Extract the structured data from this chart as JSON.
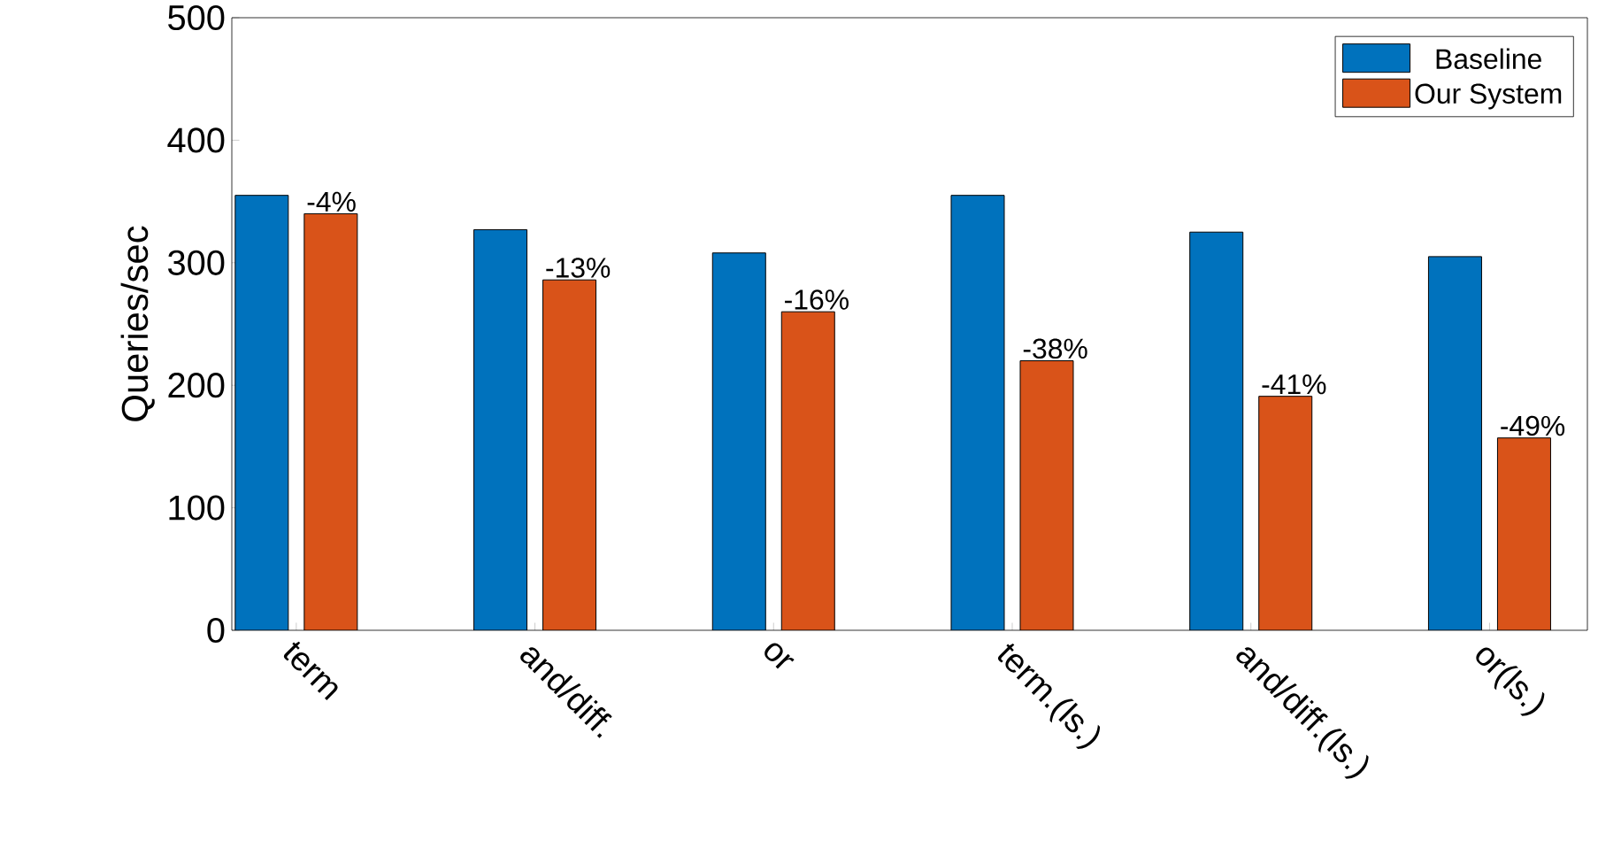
{
  "chart_data": {
    "type": "bar",
    "ylabel": "Queries/sec",
    "categories": [
      "term",
      "and/diff.",
      "or",
      "term.(ls.)",
      "and/diff.(ls.)",
      "or(ls.)"
    ],
    "series": [
      {
        "name": "Baseline",
        "color": "#0072bd",
        "values": [
          355,
          327,
          308,
          355,
          325,
          305
        ]
      },
      {
        "name": "Our System",
        "color": "#d95319",
        "values": [
          340,
          286,
          260,
          220,
          191,
          157
        ]
      }
    ],
    "annotations": [
      {
        "text": "-4%",
        "x": "term",
        "y": 340
      },
      {
        "text": "-13%",
        "x": "and/diff.",
        "y": 286
      },
      {
        "text": "-16%",
        "x": "or",
        "y": 260
      },
      {
        "text": "-38%",
        "x": "term.(ls.)",
        "y": 220
      },
      {
        "text": "-41%",
        "x": "and/diff.(ls.)",
        "y": 191
      },
      {
        "text": "-49%",
        "x": "or(ls.)",
        "y": 157
      }
    ],
    "ylim": [
      0,
      500
    ],
    "yticks": [
      0,
      100,
      200,
      300,
      400,
      500
    ],
    "legend": "top right",
    "grid": false
  }
}
